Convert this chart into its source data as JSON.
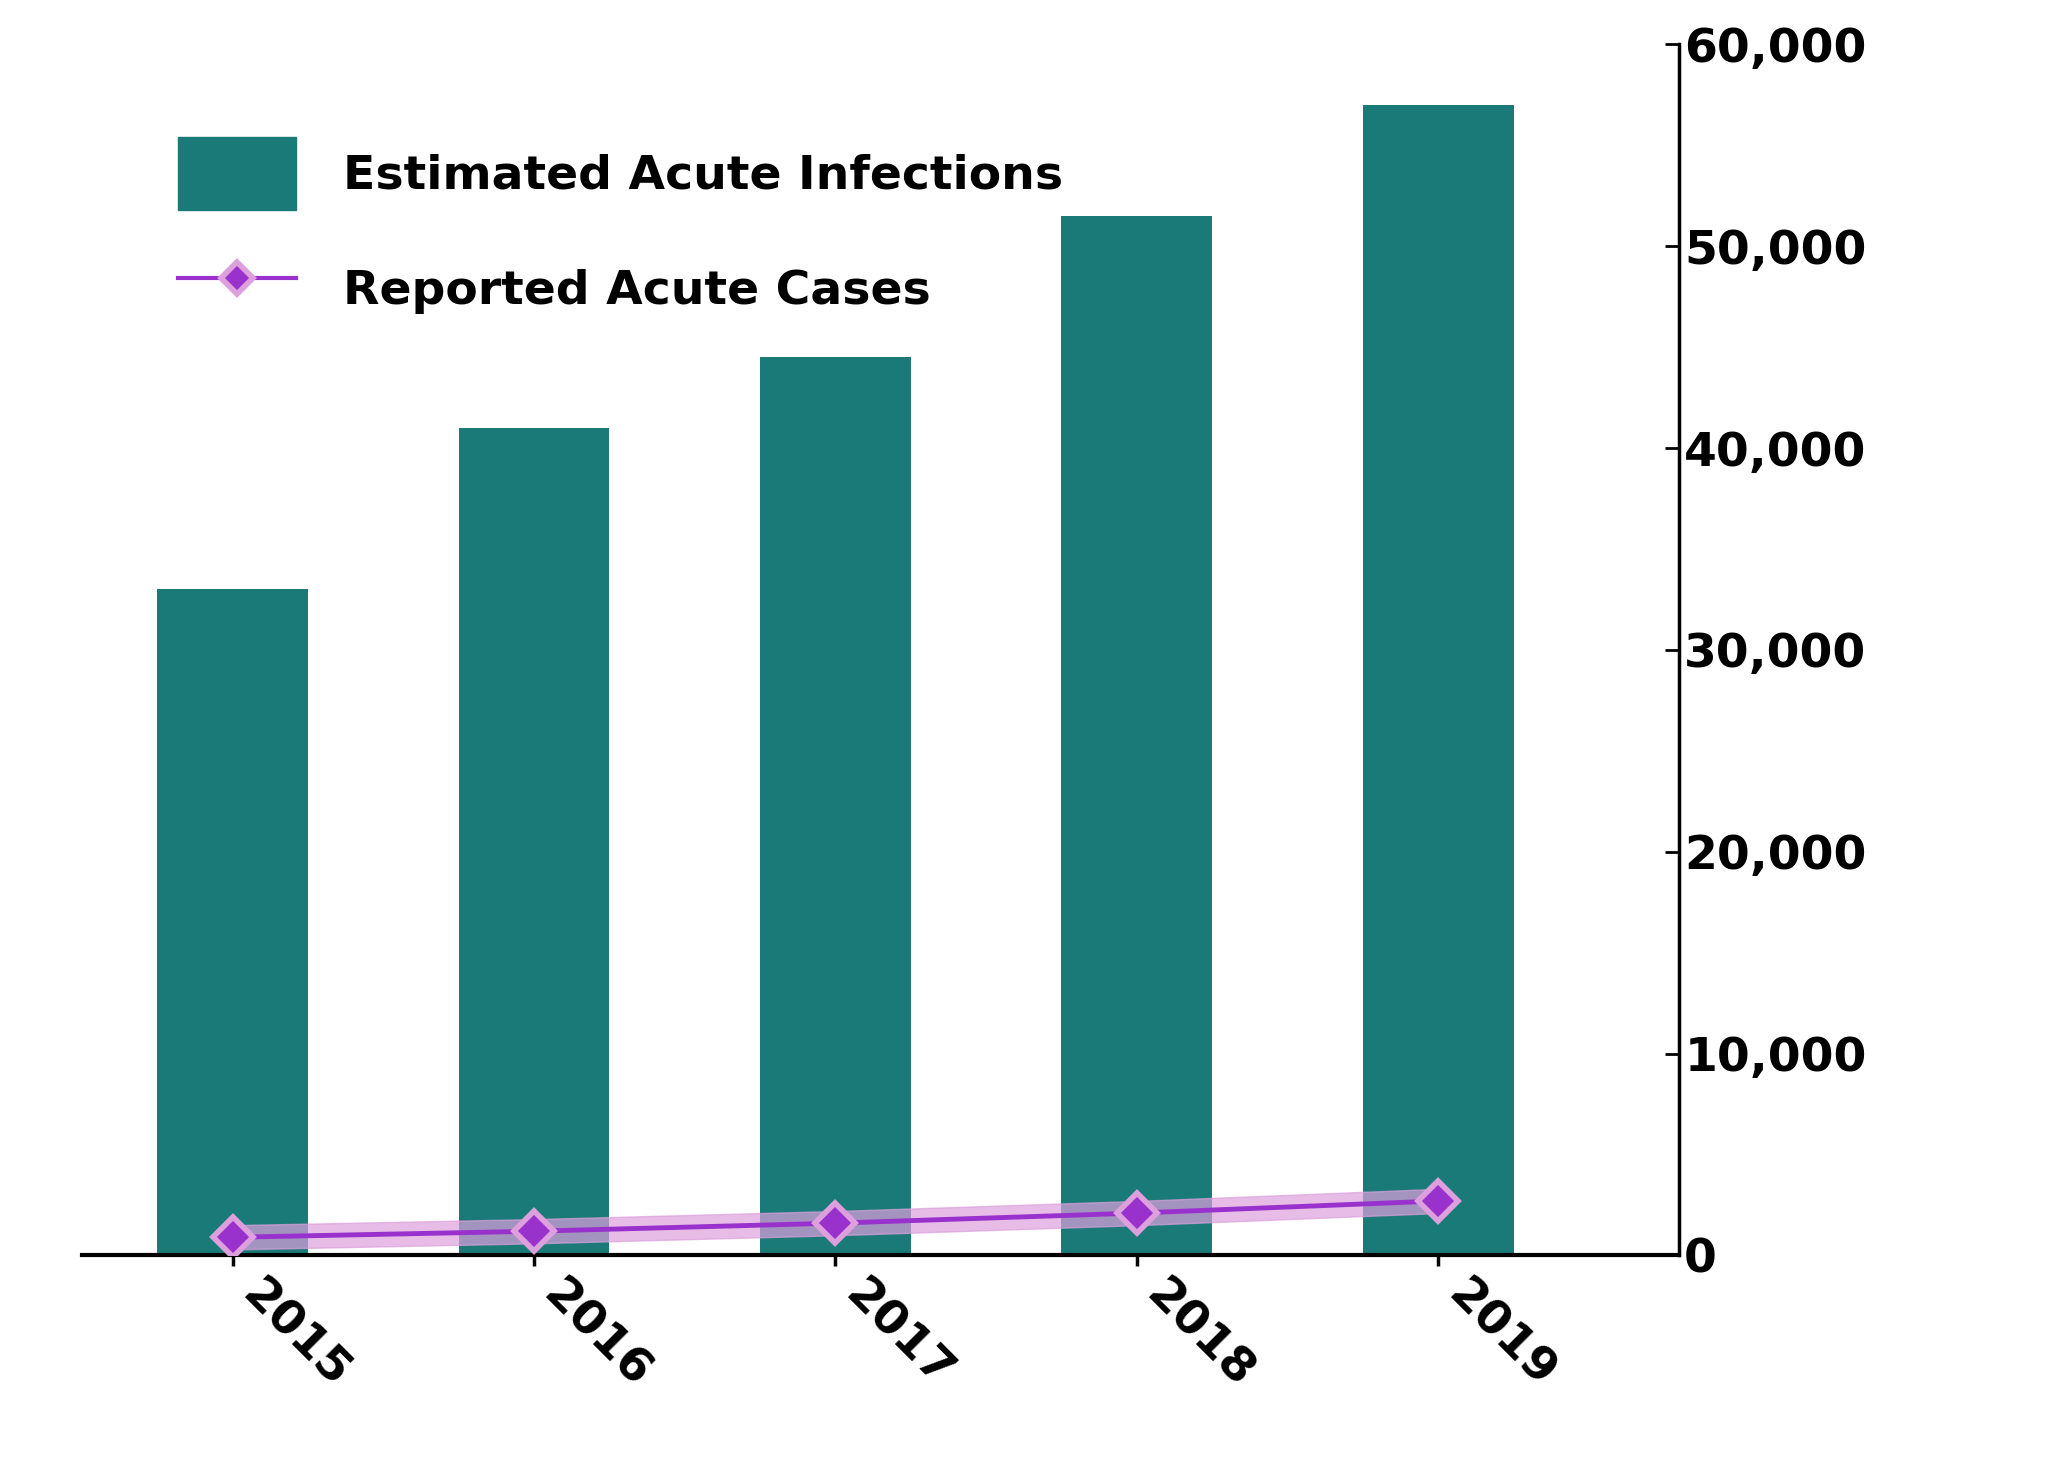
{
  "years": [
    2015,
    2016,
    2017,
    2018,
    2019
  ],
  "bar_values": [
    33000,
    41000,
    44500,
    51500,
    57000
  ],
  "line_values": [
    900,
    1200,
    1600,
    2100,
    2700
  ],
  "bar_color": "#1a7a78",
  "line_color": "#9932CC",
  "line_fill_color": "#DDA0DD",
  "bar_label": "Estimated Acute Infections",
  "line_label": "Reported Acute Cases",
  "ylim": [
    0,
    60000
  ],
  "yticks": [
    0,
    10000,
    20000,
    30000,
    40000,
    50000,
    60000
  ],
  "background_color": "#ffffff",
  "tick_fontsize": 34,
  "legend_fontsize": 34,
  "bar_width": 0.5,
  "xlim": [
    2014.5,
    2019.8
  ]
}
